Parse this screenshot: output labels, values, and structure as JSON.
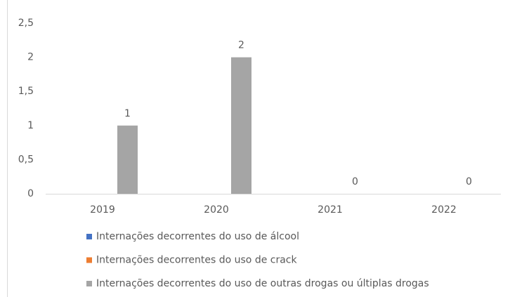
{
  "chart_data": {
    "type": "bar",
    "categories": [
      "2019",
      "2020",
      "2021",
      "2022"
    ],
    "series": [
      {
        "name": "Internações decorrentes do uso de álcool",
        "color": "#4472c4",
        "values": [
          null,
          null,
          null,
          null
        ]
      },
      {
        "name": "Internações decorrentes do uso de crack",
        "color": "#ed7d31",
        "values": [
          null,
          null,
          null,
          null
        ]
      },
      {
        "name": "Internações decorrentes do uso de outras drogas ou últiplas drogas",
        "color": "#a5a5a5",
        "values": [
          1,
          2,
          0,
          0
        ]
      }
    ],
    "ylim": [
      0,
      2.5
    ],
    "yticks": [
      0,
      {
        "value": 0.5,
        "label": "0,5"
      },
      1,
      {
        "value": 1.5,
        "label": "1,5"
      },
      2,
      {
        "value": 2.5,
        "label": "2,5"
      }
    ],
    "grid": false
  }
}
